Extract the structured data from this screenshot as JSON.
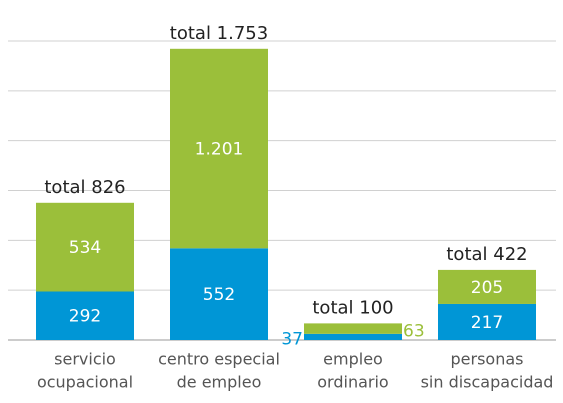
{
  "chart_data": {
    "type": "stacked_bar",
    "categories": [
      [
        "servicio",
        "ocupacional"
      ],
      [
        "centro especial",
        "de empleo"
      ],
      [
        "empleo",
        "ordinario"
      ],
      [
        "personas",
        "sin discapacidad"
      ]
    ],
    "series": [
      {
        "color": "#0096d6",
        "values": [
          292,
          552,
          37,
          217
        ]
      },
      {
        "color": "#9bbf3a",
        "values": [
          534,
          1201,
          63,
          205
        ],
        "value_labels": [
          "534",
          "1.201",
          "63",
          "205"
        ]
      }
    ],
    "total_labels": [
      "total 826",
      "total 1.753",
      "total 100",
      "total 422"
    ],
    "ylim": [
      0,
      1800
    ],
    "yticks": [
      0,
      300,
      600,
      900,
      1200,
      1500,
      1800
    ],
    "tick_labels": false,
    "grid": true
  }
}
